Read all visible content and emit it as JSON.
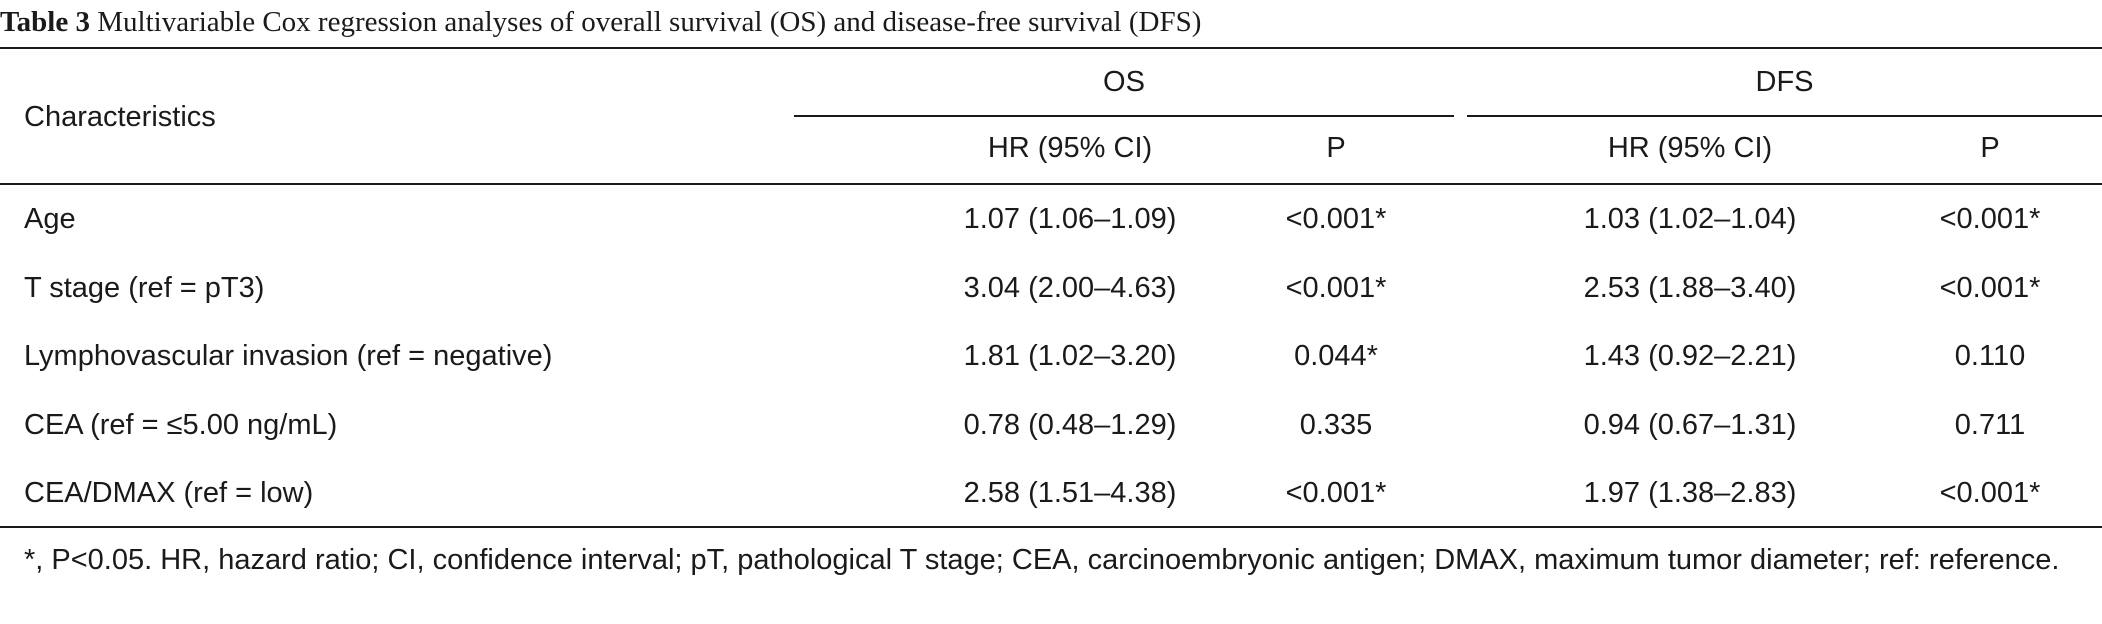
{
  "caption": {
    "label": "Table 3",
    "text": "Multivariable Cox regression analyses of overall survival (OS) and disease-free survival (DFS)"
  },
  "header": {
    "characteristics": "Characteristics",
    "group_os": "OS",
    "group_dfs": "DFS",
    "os_hr": "HR (95% CI)",
    "os_p": "P",
    "dfs_hr": "HR (95% CI)",
    "dfs_p": "P"
  },
  "rows": [
    {
      "label": "Age",
      "os_hr": "1.07 (1.06–1.09)",
      "os_p": "<0.001*",
      "dfs_hr": "1.03 (1.02–1.04)",
      "dfs_p": "<0.001*"
    },
    {
      "label": "T stage (ref = pT3)",
      "os_hr": "3.04 (2.00–4.63)",
      "os_p": "<0.001*",
      "dfs_hr": "2.53 (1.88–3.40)",
      "dfs_p": "<0.001*"
    },
    {
      "label": "Lymphovascular invasion (ref = negative)",
      "os_hr": "1.81 (1.02–3.20)",
      "os_p": "0.044*",
      "dfs_hr": "1.43 (0.92–2.21)",
      "dfs_p": "0.110"
    },
    {
      "label": "CEA (ref = ≤5.00 ng/mL)",
      "os_hr": "0.78 (0.48–1.29)",
      "os_p": "0.335",
      "dfs_hr": "0.94 (0.67–1.31)",
      "dfs_p": "0.711"
    },
    {
      "label": "CEA/DMAX (ref = low)",
      "os_hr": "2.58 (1.51–4.38)",
      "os_p": "<0.001*",
      "dfs_hr": "1.97 (1.38–2.83)",
      "dfs_p": "<0.001*"
    }
  ],
  "footnote": "*, P<0.05. HR, hazard ratio; CI, confidence interval; pT, pathological T stage; CEA, carcinoembryonic antigen; DMAX, maximum tumor diameter; ref: reference."
}
